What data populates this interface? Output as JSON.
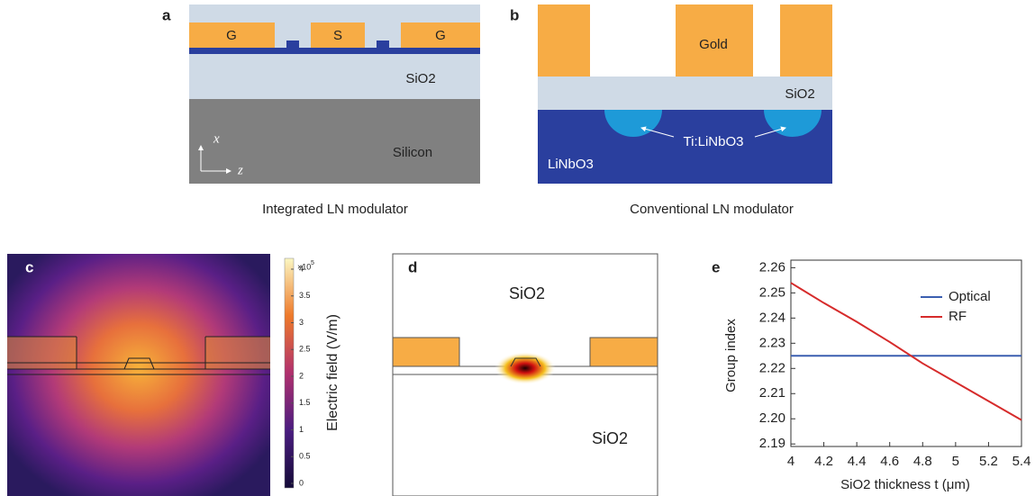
{
  "panels": {
    "a": {
      "label": "a",
      "electrodes": [
        "G",
        "S",
        "G"
      ],
      "oxide": "SiO2",
      "substrate": "Silicon",
      "axis_x": "x",
      "axis_z": "z",
      "caption": "Integrated LN modulator"
    },
    "b": {
      "label": "b",
      "electrode": "Gold",
      "oxide": "SiO2",
      "waveguide": "Ti:LiNbO3",
      "substrate": "LiNbO3",
      "caption": "Conventional LN modulator"
    },
    "c": {
      "label": "c",
      "colorbar_multiplier": "×10",
      "colorbar_exponent": "5",
      "colorbar_ticks": [
        "0",
        "0.5",
        "1",
        "1.5",
        "2",
        "2.5",
        "3",
        "3.5",
        "4"
      ],
      "colorbar_label": "Electric field (V/m)"
    },
    "d": {
      "label": "d",
      "top_region": "SiO2",
      "bottom_region": "SiO2"
    },
    "e": {
      "label": "e"
    }
  },
  "chart_data": {
    "type": "line",
    "xlabel": "SiO2 thickness t (μm)",
    "ylabel": "Group index",
    "x": [
      4,
      4.2,
      4.4,
      4.6,
      4.8,
      5,
      5.2,
      5.4
    ],
    "series": [
      {
        "name": "Optical",
        "color": "#3b5fb0",
        "values": [
          2.225,
          2.225,
          2.225,
          2.225,
          2.225,
          2.225,
          2.225,
          2.225
        ]
      },
      {
        "name": "RF",
        "color": "#d62b2b",
        "values": [
          2.254,
          2.246,
          2.2385,
          2.2305,
          2.222,
          2.2145,
          2.207,
          2.1995
        ]
      }
    ],
    "xlim": [
      4,
      5.4
    ],
    "ylim": [
      2.189,
      2.263
    ],
    "xticks": [
      4,
      4.2,
      4.4,
      4.6,
      4.8,
      5,
      5.2,
      5.4
    ],
    "yticks": [
      2.19,
      {
        "value": 2.2,
        "label": "2.20"
      },
      2.21,
      2.22,
      2.23,
      2.24,
      2.25,
      2.26
    ],
    "legend": "upper right"
  }
}
